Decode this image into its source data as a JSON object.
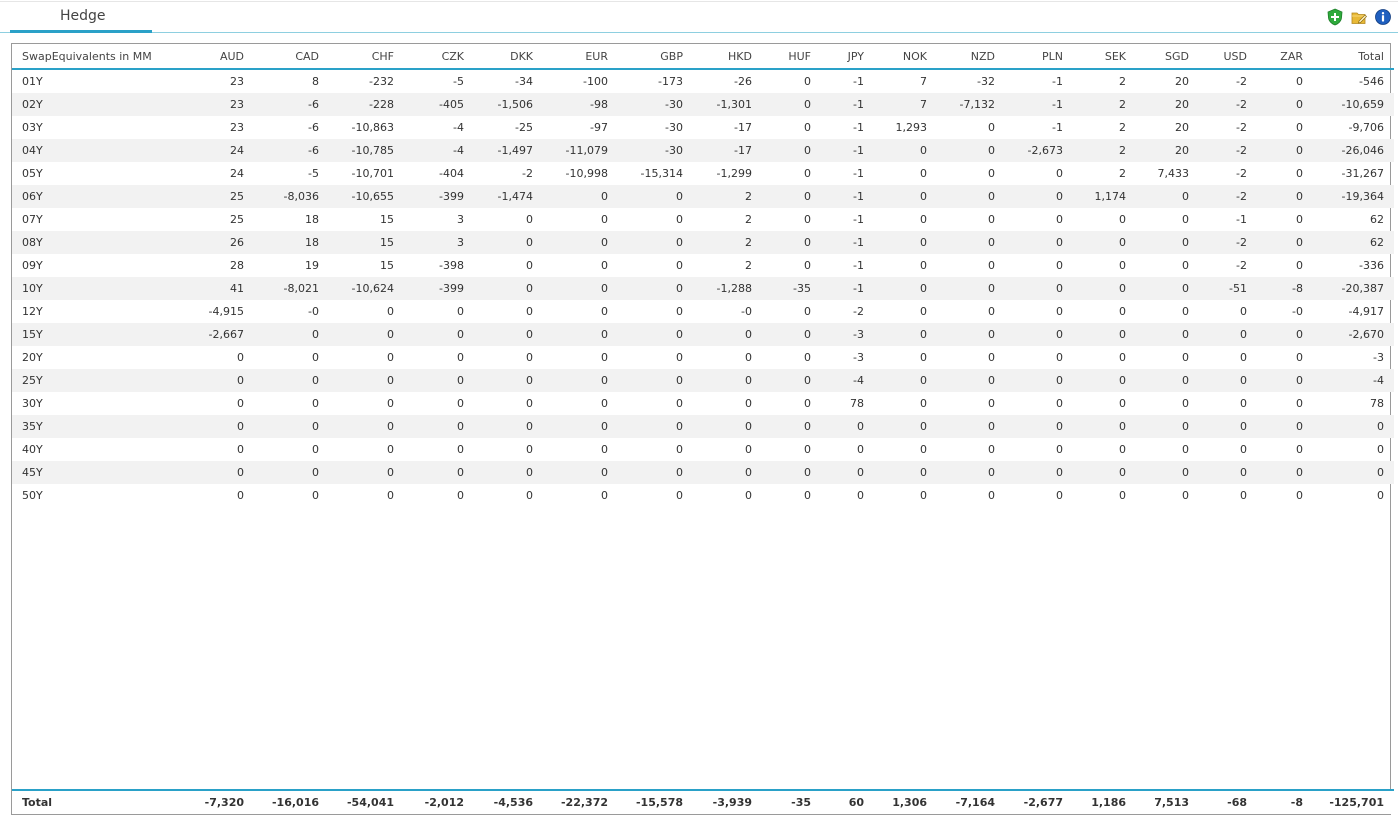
{
  "tab": {
    "label": "Hedge"
  },
  "toolbar": {
    "icons": [
      "add-shield-icon",
      "folder-edit-icon",
      "info-icon"
    ],
    "colors": {
      "add": "#2eaa3c",
      "folder": "#e8b936",
      "info": "#1f5fbf"
    }
  },
  "table": {
    "columns": [
      "SwapEquivalents in MM",
      "AUD",
      "CAD",
      "CHF",
      "CZK",
      "DKK",
      "EUR",
      "GBP",
      "HKD",
      "HUF",
      "JPY",
      "NOK",
      "NZD",
      "PLN",
      "SEK",
      "SGD",
      "USD",
      "ZAR",
      "Total"
    ],
    "rows": [
      [
        "01Y",
        "23",
        "8",
        "-232",
        "-5",
        "-34",
        "-100",
        "-173",
        "-26",
        "0",
        "-1",
        "7",
        "-32",
        "-1",
        "2",
        "20",
        "-2",
        "0",
        "-546"
      ],
      [
        "02Y",
        "23",
        "-6",
        "-228",
        "-405",
        "-1,506",
        "-98",
        "-30",
        "-1,301",
        "0",
        "-1",
        "7",
        "-7,132",
        "-1",
        "2",
        "20",
        "-2",
        "0",
        "-10,659"
      ],
      [
        "03Y",
        "23",
        "-6",
        "-10,863",
        "-4",
        "-25",
        "-97",
        "-30",
        "-17",
        "0",
        "-1",
        "1,293",
        "0",
        "-1",
        "2",
        "20",
        "-2",
        "0",
        "-9,706"
      ],
      [
        "04Y",
        "24",
        "-6",
        "-10,785",
        "-4",
        "-1,497",
        "-11,079",
        "-30",
        "-17",
        "0",
        "-1",
        "0",
        "0",
        "-2,673",
        "2",
        "20",
        "-2",
        "0",
        "-26,046"
      ],
      [
        "05Y",
        "24",
        "-5",
        "-10,701",
        "-404",
        "-2",
        "-10,998",
        "-15,314",
        "-1,299",
        "0",
        "-1",
        "0",
        "0",
        "0",
        "2",
        "7,433",
        "-2",
        "0",
        "-31,267"
      ],
      [
        "06Y",
        "25",
        "-8,036",
        "-10,655",
        "-399",
        "-1,474",
        "0",
        "0",
        "2",
        "0",
        "-1",
        "0",
        "0",
        "0",
        "1,174",
        "0",
        "-2",
        "0",
        "-19,364"
      ],
      [
        "07Y",
        "25",
        "18",
        "15",
        "3",
        "0",
        "0",
        "0",
        "2",
        "0",
        "-1",
        "0",
        "0",
        "0",
        "0",
        "0",
        "-1",
        "0",
        "62"
      ],
      [
        "08Y",
        "26",
        "18",
        "15",
        "3",
        "0",
        "0",
        "0",
        "2",
        "0",
        "-1",
        "0",
        "0",
        "0",
        "0",
        "0",
        "-2",
        "0",
        "62"
      ],
      [
        "09Y",
        "28",
        "19",
        "15",
        "-398",
        "0",
        "0",
        "0",
        "2",
        "0",
        "-1",
        "0",
        "0",
        "0",
        "0",
        "0",
        "-2",
        "0",
        "-336"
      ],
      [
        "10Y",
        "41",
        "-8,021",
        "-10,624",
        "-399",
        "0",
        "0",
        "0",
        "-1,288",
        "-35",
        "-1",
        "0",
        "0",
        "0",
        "0",
        "0",
        "-51",
        "-8",
        "-20,387"
      ],
      [
        "12Y",
        "-4,915",
        "-0",
        "0",
        "0",
        "0",
        "0",
        "0",
        "-0",
        "0",
        "-2",
        "0",
        "0",
        "0",
        "0",
        "0",
        "0",
        "-0",
        "-4,917"
      ],
      [
        "15Y",
        "-2,667",
        "0",
        "0",
        "0",
        "0",
        "0",
        "0",
        "0",
        "0",
        "-3",
        "0",
        "0",
        "0",
        "0",
        "0",
        "0",
        "0",
        "-2,670"
      ],
      [
        "20Y",
        "0",
        "0",
        "0",
        "0",
        "0",
        "0",
        "0",
        "0",
        "0",
        "-3",
        "0",
        "0",
        "0",
        "0",
        "0",
        "0",
        "0",
        "-3"
      ],
      [
        "25Y",
        "0",
        "0",
        "0",
        "0",
        "0",
        "0",
        "0",
        "0",
        "0",
        "-4",
        "0",
        "0",
        "0",
        "0",
        "0",
        "0",
        "0",
        "-4"
      ],
      [
        "30Y",
        "0",
        "0",
        "0",
        "0",
        "0",
        "0",
        "0",
        "0",
        "0",
        "78",
        "0",
        "0",
        "0",
        "0",
        "0",
        "0",
        "0",
        "78"
      ],
      [
        "35Y",
        "0",
        "0",
        "0",
        "0",
        "0",
        "0",
        "0",
        "0",
        "0",
        "0",
        "0",
        "0",
        "0",
        "0",
        "0",
        "0",
        "0",
        "0"
      ],
      [
        "40Y",
        "0",
        "0",
        "0",
        "0",
        "0",
        "0",
        "0",
        "0",
        "0",
        "0",
        "0",
        "0",
        "0",
        "0",
        "0",
        "0",
        "0",
        "0"
      ],
      [
        "45Y",
        "0",
        "0",
        "0",
        "0",
        "0",
        "0",
        "0",
        "0",
        "0",
        "0",
        "0",
        "0",
        "0",
        "0",
        "0",
        "0",
        "0",
        "0"
      ],
      [
        "50Y",
        "0",
        "0",
        "0",
        "0",
        "0",
        "0",
        "0",
        "0",
        "0",
        "0",
        "0",
        "0",
        "0",
        "0",
        "0",
        "0",
        "0",
        "0"
      ]
    ],
    "totals": [
      "Total",
      "-7,320",
      "-16,016",
      "-54,041",
      "-2,012",
      "-4,536",
      "-22,372",
      "-15,578",
      "-3,939",
      "-35",
      "60",
      "1,306",
      "-7,164",
      "-2,677",
      "1,186",
      "7,513",
      "-68",
      "-8",
      "-125,701"
    ]
  }
}
